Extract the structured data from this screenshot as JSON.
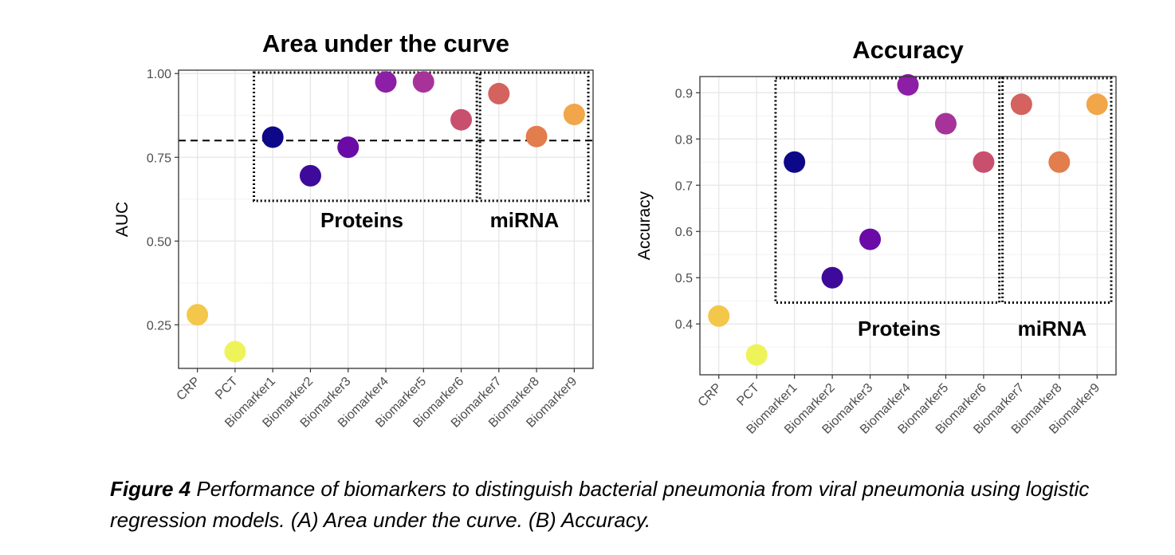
{
  "chart_data": [
    {
      "type": "scatter",
      "title": "Area under the curve",
      "xlabel": "",
      "ylabel": "AUC",
      "categories": [
        "CRP",
        "PCT",
        "Biomarker1",
        "Biomarker2",
        "Biomarker3",
        "Biomarker4",
        "Biomarker5",
        "Biomarker6",
        "Biomarker7",
        "Biomarker8",
        "Biomarker9"
      ],
      "values": [
        0.28,
        0.17,
        0.81,
        0.695,
        0.78,
        0.975,
        0.975,
        0.862,
        0.94,
        0.812,
        0.878
      ],
      "colors": [
        "#f3c74a",
        "#eef35a",
        "#0d0887",
        "#3d0a9b",
        "#6a0ba7",
        "#8d1ea6",
        "#a7339a",
        "#c8506e",
        "#d4625e",
        "#e27d4e",
        "#f0a649"
      ],
      "yticks": [
        "0.25",
        "0.50",
        "0.75",
        "1.00"
      ],
      "ytick_values": [
        0.25,
        0.5,
        0.75,
        1.0
      ],
      "ylim": [
        0.12,
        1.01
      ],
      "reference_line": 0.8,
      "groups": [
        {
          "label": "Proteins",
          "from": "Biomarker1",
          "to": "Biomarker6",
          "ymin": 0.62
        },
        {
          "label": "miRNA",
          "from": "Biomarker7",
          "to": "Biomarker9",
          "ymin": 0.62
        }
      ],
      "grid": true,
      "legend": "none"
    },
    {
      "type": "scatter",
      "title": "Accuracy",
      "xlabel": "",
      "ylabel": "Accuracy",
      "categories": [
        "CRP",
        "PCT",
        "Biomarker1",
        "Biomarker2",
        "Biomarker3",
        "Biomarker4",
        "Biomarker5",
        "Biomarker6",
        "Biomarker7",
        "Biomarker8",
        "Biomarker9"
      ],
      "values": [
        0.417,
        0.333,
        0.75,
        0.5,
        0.583,
        0.917,
        0.833,
        0.75,
        0.875,
        0.75,
        0.875
      ],
      "colors": [
        "#f3c74a",
        "#eef35a",
        "#0d0887",
        "#3d0a9b",
        "#6a0ba7",
        "#8d1ea6",
        "#a7339a",
        "#c8506e",
        "#d4625e",
        "#e27d4e",
        "#f0a649"
      ],
      "yticks": [
        "0.4",
        "0.5",
        "0.6",
        "0.7",
        "0.8",
        "0.9"
      ],
      "ytick_values": [
        0.4,
        0.5,
        0.6,
        0.7,
        0.8,
        0.9
      ],
      "ylim": [
        0.29,
        0.935
      ],
      "groups": [
        {
          "label": "Proteins",
          "from": "Biomarker1",
          "to": "Biomarker6",
          "ymin": 0.446
        },
        {
          "label": "miRNA",
          "from": "Biomarker7",
          "to": "Biomarker9",
          "ymin": 0.446
        }
      ],
      "grid": true,
      "legend": "none"
    }
  ],
  "caption": {
    "label": "Figure 4",
    "text": " Performance of biomarkers to distinguish bacterial pneumonia from viral pneumonia using logistic regression models. (A) Area under the curve. (B) Accuracy."
  }
}
